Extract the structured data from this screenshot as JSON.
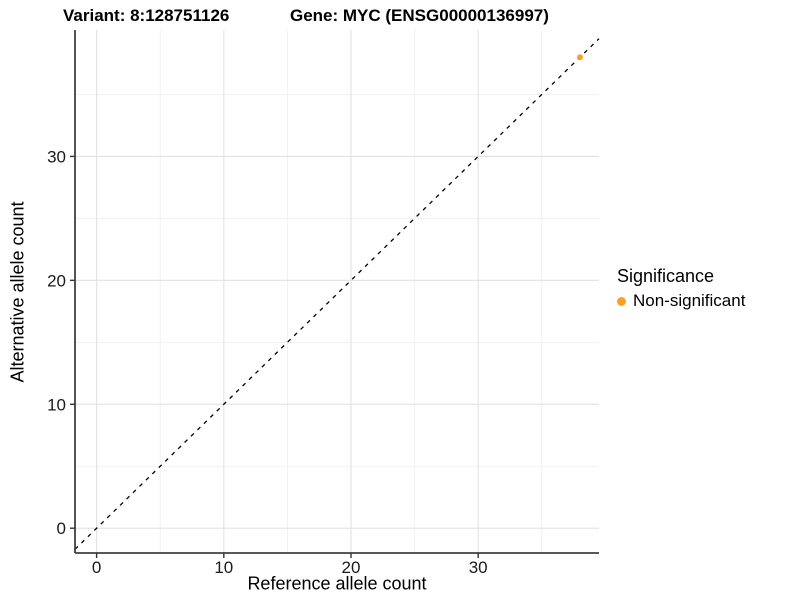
{
  "chart_data": {
    "type": "scatter",
    "titles": {
      "left": "Variant: 8:128751126",
      "right": "Gene: MYC (ENSG00000136997)"
    },
    "xlabel": "Reference allele count",
    "ylabel": "Alternative allele count",
    "xlim": [
      -1.7,
      39.5
    ],
    "ylim": [
      -2.0,
      40.2
    ],
    "xticks": [
      0,
      10,
      20,
      30
    ],
    "yticks": [
      0,
      10,
      20,
      30
    ],
    "xticks_minor": [
      5,
      15,
      25,
      35
    ],
    "yticks_minor": [
      5,
      15,
      25,
      35
    ],
    "grid": "major+minor",
    "points": [
      {
        "x": 38,
        "y": 38,
        "group": "Non-significant"
      }
    ],
    "identity_line": {
      "equation": "y = x",
      "style": "dashed"
    },
    "legend": {
      "title": "Significance",
      "position": "right",
      "items": [
        {
          "label": "Non-significant",
          "color": "#F9A02B"
        }
      ]
    },
    "colors": {
      "point": "#F9A02B",
      "grid_major": "#E4E4E4",
      "grid_minor": "#F1F1F1",
      "axis_line": "#404040",
      "tick_mark": "#333333",
      "tick_label": "#1A1A1A",
      "identity_line": "#000000",
      "background": "#FFFFFF"
    }
  }
}
